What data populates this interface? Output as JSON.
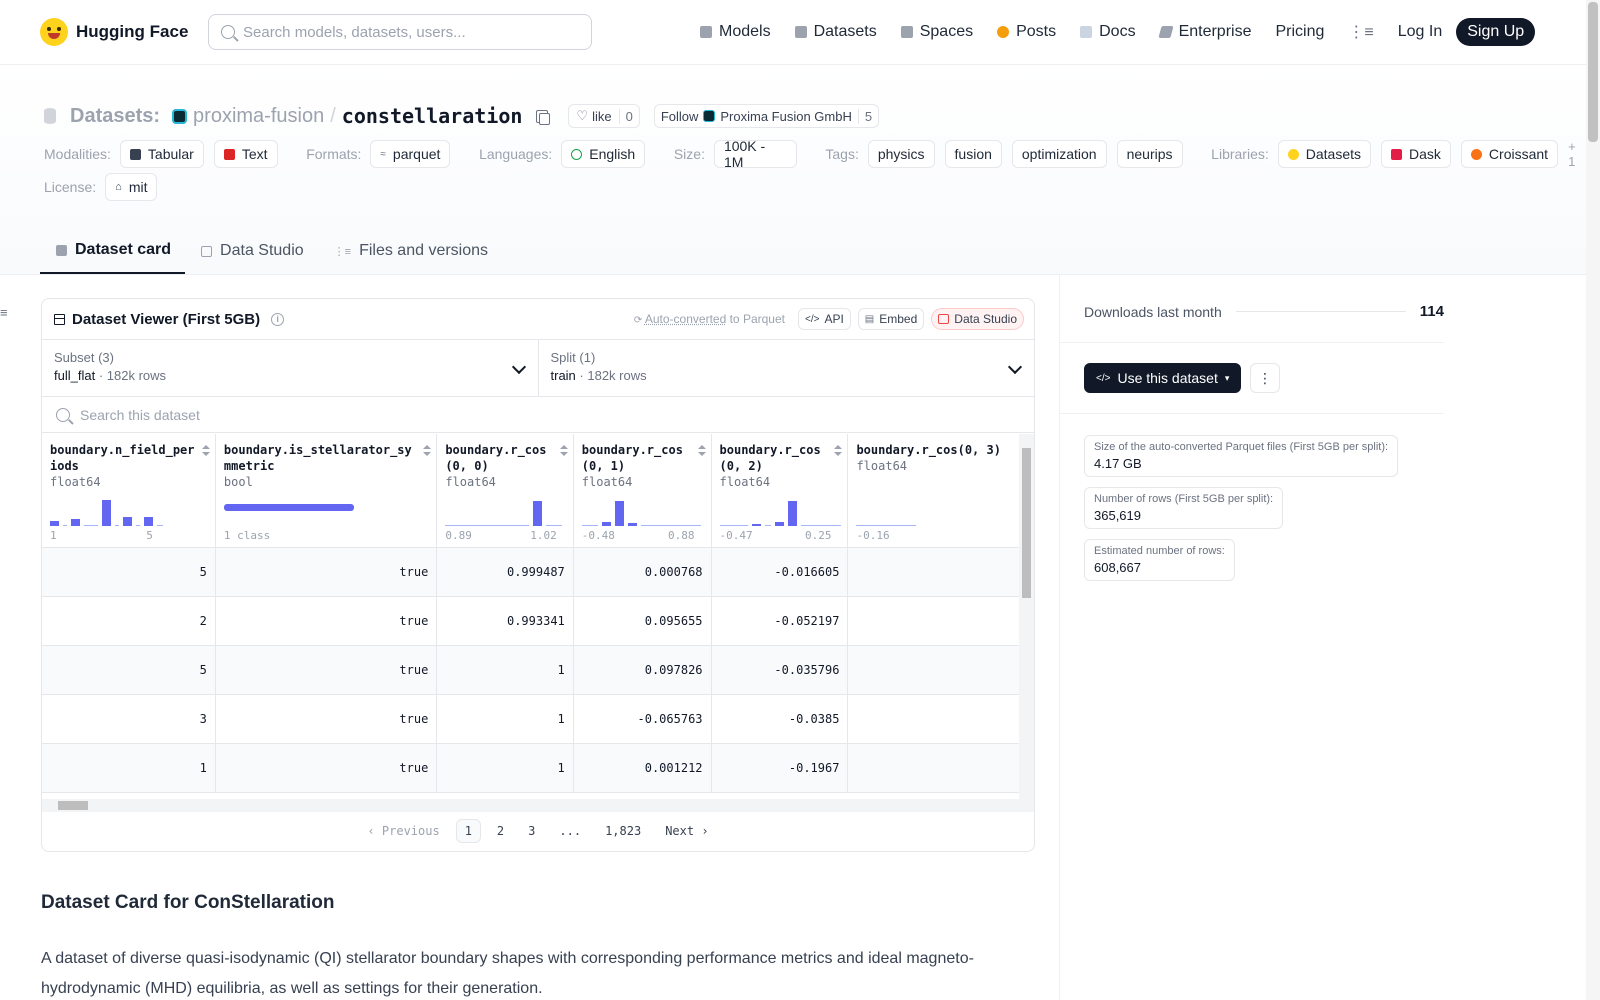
{
  "header": {
    "logo_text": "Hugging Face",
    "search_placeholder": "Search models, datasets, users...",
    "nav": [
      "Models",
      "Datasets",
      "Spaces",
      "Posts",
      "Docs",
      "Enterprise",
      "Pricing"
    ],
    "login": "Log In",
    "signup": "Sign Up"
  },
  "repo": {
    "section": "Datasets:",
    "org": "proxima-fusion",
    "slash": "/",
    "name": "constellaration",
    "like_label": "like",
    "like_count": "0",
    "follow_label": "Follow",
    "follow_org": "Proxima Fusion GmbH",
    "follow_count": "5"
  },
  "meta": {
    "modalities_label": "Modalities:",
    "modalities": [
      "Tabular",
      "Text"
    ],
    "formats_label": "Formats:",
    "formats": [
      "parquet"
    ],
    "languages_label": "Languages:",
    "languages": [
      "English"
    ],
    "size_label": "Size:",
    "size": "100K - 1M",
    "tags_label": "Tags:",
    "tags": [
      "physics",
      "fusion",
      "optimization",
      "neurips"
    ],
    "libraries_label": "Libraries:",
    "libraries": [
      "Datasets",
      "Dask",
      "Croissant"
    ],
    "libraries_more": "+ 1",
    "license_label": "License:",
    "license": "mit"
  },
  "tabs": [
    "Dataset card",
    "Data Studio",
    "Files and versions"
  ],
  "viewer": {
    "title": "Dataset Viewer (First 5GB)",
    "auto_converted": "Auto-converted",
    "to_parquet": " to Parquet",
    "api": "API",
    "embed": "Embed",
    "data_studio": "Data Studio",
    "subset_label": "Subset (3)",
    "subset_value": "full_flat",
    "subset_rows": "182k rows",
    "split_label": "Split (1)",
    "split_value": "train",
    "split_rows": "182k rows",
    "search_placeholder": "Search this dataset",
    "columns": [
      {
        "name": "boundary.n_field_periods",
        "type": "float64",
        "min": "1",
        "max": "5"
      },
      {
        "name": "boundary.is_stellarator_symmetric",
        "type": "bool",
        "summary": "1 class"
      },
      {
        "name": "boundary.r_cos(0, 0)",
        "type": "float64",
        "min": "0.89",
        "max": "1.02"
      },
      {
        "name": "boundary.r_cos(0, 1)",
        "type": "float64",
        "min": "-0.48",
        "max": "0.88"
      },
      {
        "name": "boundary.r_cos(0, 2)",
        "type": "float64",
        "min": "-0.47",
        "max": "0.25"
      },
      {
        "name": "boundary.r_cos(0, 3)",
        "type": "float64",
        "min": "-0.16",
        "max": ""
      }
    ],
    "rows": [
      [
        "5",
        "true",
        "0.999487",
        "0.000768",
        "-0.016605",
        ""
      ],
      [
        "2",
        "true",
        "0.993341",
        "0.095655",
        "-0.052197",
        ""
      ],
      [
        "5",
        "true",
        "1",
        "0.097826",
        "-0.035796",
        ""
      ],
      [
        "3",
        "true",
        "1",
        "-0.065763",
        "-0.0385",
        ""
      ],
      [
        "1",
        "true",
        "1",
        "0.001212",
        "-0.1967",
        ""
      ]
    ],
    "pager": {
      "prev": "Previous",
      "pages": [
        "1",
        "2",
        "3",
        "...",
        "1,823"
      ],
      "next": "Next"
    }
  },
  "card": {
    "title": "Dataset Card for ConStellaration",
    "text": "A dataset of diverse quasi-isodynamic (QI) stellarator boundary shapes with corresponding performance metrics and ideal magneto-hydrodynamic (MHD) equilibria, as well as settings for their generation."
  },
  "sidebar": {
    "downloads_label": "Downloads last month",
    "downloads_value": "114",
    "use_button": "Use this dataset",
    "stats": [
      {
        "label": "Size of the auto-converted Parquet files (First 5GB per split):",
        "value": "4.17 GB"
      },
      {
        "label": "Number of rows (First 5GB per split):",
        "value": "365,619"
      },
      {
        "label": "Estimated number of rows:",
        "value": "608,667"
      }
    ]
  },
  "colors": {
    "accent": "#6366f1",
    "dark": "#111827",
    "hf_yellow": "#ffd21e"
  }
}
